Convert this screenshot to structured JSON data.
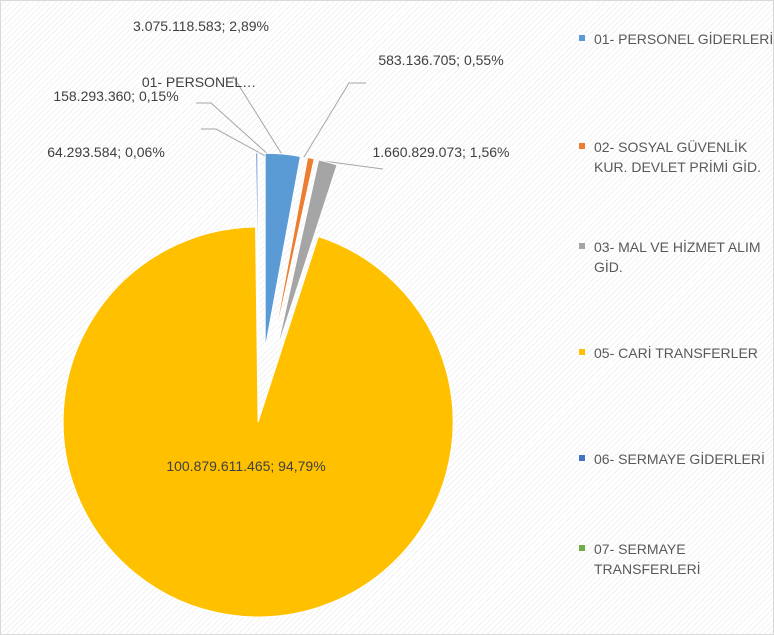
{
  "chart_data": {
    "type": "pie",
    "categories": [
      "01- PERSONEL GİDERLERİ",
      "02- SOSYAL GÜVENLİK KUR. DEVLET PRİMİ GİD.",
      "03- MAL VE HİZMET ALIM GİD.",
      "05- CARİ TRANSFERLER",
      "06- SERMAYE GİDERLERİ",
      "07- SERMAYE TRANSFERLERİ"
    ],
    "values": [
      3075118583,
      583136705,
      1660829073,
      100879611465,
      158293360,
      64293584
    ],
    "value_labels": [
      "3.075.118.583; 2,89%",
      "583.136.705; 0,55%",
      "1.660.829.073; 1,56%",
      "100.879.611.465; 94,79%",
      "158.293.360; 0,15%",
      "64.293.584; 0,06%"
    ],
    "colors": [
      "#5b9bd5",
      "#ed7d31",
      "#a5a5a5",
      "#ffc000",
      "#4472c4",
      "#70ad47"
    ],
    "annotations": [
      "01- PERSONEL…"
    ],
    "legend": "right"
  }
}
